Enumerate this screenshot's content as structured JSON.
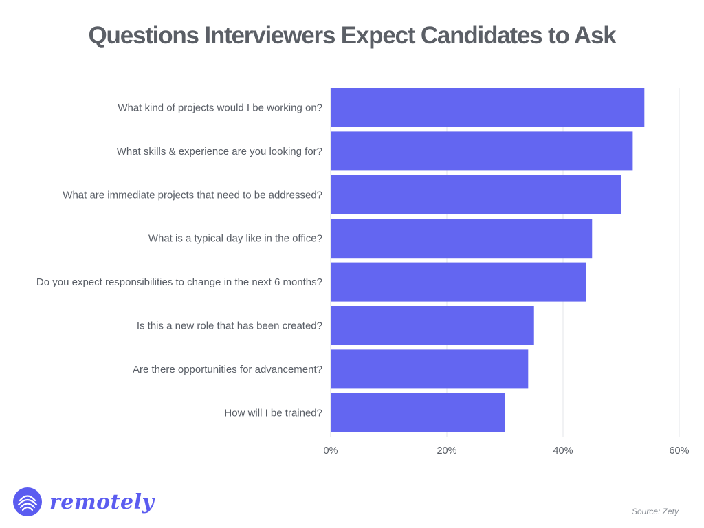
{
  "title": "Questions Interviewers Expect Candidates to Ask",
  "source": "Source: Zety",
  "brand": {
    "name": "remotely",
    "logo_icon": "remotely-logo-icon",
    "color": "#5b5cf0"
  },
  "chart_data": {
    "type": "bar",
    "orientation": "horizontal",
    "title": "Questions Interviewers Expect Candidates to Ask",
    "categories": [
      "What kind of projects would I be working on?",
      "What skills & experience are you looking for?",
      "What are immediate projects that need to be addressed?",
      "What is a typical day like in the office?",
      "Do you expect responsibilities to change in the next 6 months?",
      "Is this a new role that has been created?",
      "Are there opportunities for advancement?",
      "How will I be trained?"
    ],
    "values": [
      54,
      52,
      50,
      45,
      44,
      35,
      34,
      30
    ],
    "xlim": [
      0,
      60
    ],
    "ticks": [
      0,
      20,
      40,
      60
    ],
    "tick_labels": [
      "0%",
      "20%",
      "40%",
      "60%"
    ],
    "bar_color": "#6366f1",
    "grid": true
  }
}
